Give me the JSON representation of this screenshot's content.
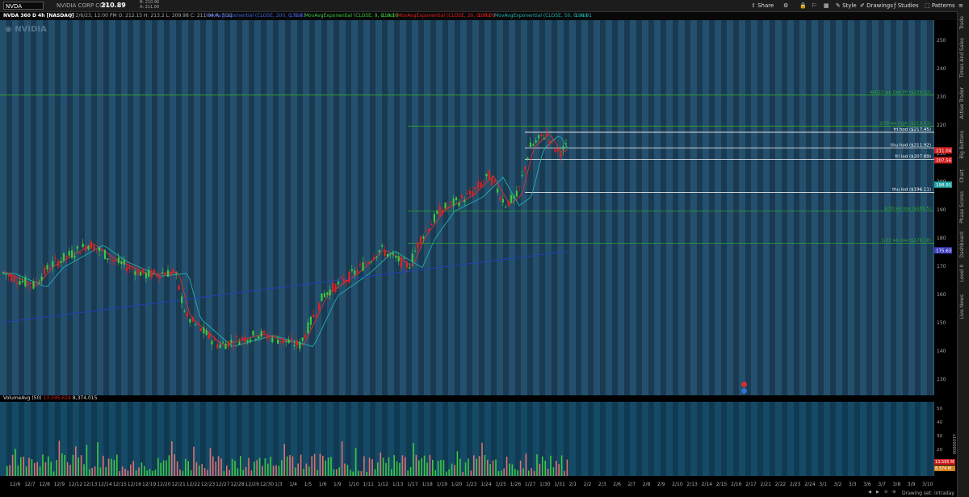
{
  "toolbar": {
    "symbol": "NVDA",
    "company": "NVIDIA CORP COM",
    "price": "210.89",
    "bid_ask_1": "B: 210.96",
    "bid_ask_2": "A: 211.00",
    "buttons": [
      "Share",
      "Style",
      "Drawings",
      "Studies",
      "Patterns"
    ]
  },
  "studies": {
    "title": "NVDA 360 D 4h [NASDAQ]",
    "ohlc": "D: 2/6/23, 12:00 PM   O: 212.15   H: 213.2   L: 209.98   C: 211.04   R: 3.22",
    "ma1": "MovAvgExponential (CLOSE, 200, 0, no)",
    "ma1_val": "175.63",
    "ma2": "MovAvgExponential (CLOSE, 9, 0, no)",
    "ma2_val": "210.16",
    "ma3": "MovAvgExponential (CLOSE, 20, 0, no)",
    "ma3_val": "207.56",
    "ma4": "MovAvgExponential (CLOSE, 50, 0, no)",
    "ma4_val": "198.91"
  },
  "watermark": "NVIDIA",
  "price_axis": [
    "250",
    "240",
    "230",
    "220",
    "210",
    "200",
    "190",
    "180",
    "170",
    "160",
    "150",
    "140",
    "130"
  ],
  "price_badges": [
    {
      "value": "211.04",
      "color": "#d02020"
    },
    {
      "value": "207.56",
      "color": "#d02020"
    },
    {
      "value": "198.91",
      "color": "#20a0a0"
    },
    {
      "value": "175.63",
      "color": "#4040c0"
    }
  ],
  "levels": [
    {
      "label": "4/4/22 wk Dwl PP ($230.62)",
      "price": 230.62,
      "color": "#2ca82c"
    },
    {
      "label": "2/28 wk high ($219.63)",
      "price": 219.63,
      "color": "#2ca82c"
    },
    {
      "label": "fri hod ($217.45)",
      "price": 217.45,
      "color": "#ffffff"
    },
    {
      "label": "thu hod ($211.92)",
      "price": 211.92,
      "color": "#ffffff"
    },
    {
      "label": "fri lod ($207.89)",
      "price": 207.89,
      "color": "#ffffff"
    },
    {
      "label": "thu lod ($196.11)",
      "price": 196.11,
      "color": "#ffffff"
    },
    {
      "label": "1/30 wk low ($189.5)",
      "price": 189.5,
      "color": "#2ca82c"
    },
    {
      "label": "1/23 wk low ($178.18)",
      "price": 178.18,
      "color": "#2ca82c"
    }
  ],
  "volume": {
    "label": "VolumeAvg (50)",
    "v1": "13,595,624",
    "v2": "8,374,015",
    "axis": [
      "50",
      "40",
      "30",
      "20",
      "10"
    ],
    "badge1": "13.595 M",
    "badge2": "8.374 M",
    "side_label": "x1000000"
  },
  "x_dates": [
    "12/6",
    "12/7",
    "12/8",
    "12/9",
    "12/12",
    "12/13",
    "12/14",
    "12/15",
    "12/16",
    "12/19",
    "12/20",
    "12/21",
    "12/22",
    "12/23",
    "12/27",
    "12/28",
    "12/29",
    "12/30",
    "1/3",
    "1/4",
    "1/5",
    "1/6",
    "1/9",
    "1/10",
    "1/11",
    "1/12",
    "1/13",
    "1/17",
    "1/18",
    "1/19",
    "1/20",
    "1/23",
    "1/24",
    "1/25",
    "1/26",
    "1/27",
    "1/30",
    "1/31",
    "2/1",
    "2/2",
    "2/3",
    "2/6",
    "2/7",
    "2/8",
    "2/9",
    "2/10",
    "2/13",
    "2/14",
    "2/15",
    "2/16",
    "2/17",
    "2/21",
    "2/22",
    "2/23",
    "2/24",
    "3/1",
    "3/2",
    "3/3",
    "3/6",
    "3/7",
    "3/8",
    "3/9",
    "3/10"
  ],
  "side_tabs": [
    "Trade",
    "Times And Sales",
    "Active Trader",
    "Big Buttons",
    "Chart",
    "Phase Scores",
    "Dashboard",
    "Level II",
    "Live News"
  ],
  "status": "Drawing set: intraday",
  "colors": {
    "bg": "#1a3a52",
    "up": "#3ec83e",
    "down": "#e02020",
    "ema9": "#e03030",
    "ema20": "#20b0b0",
    "ema50": "#2080c0",
    "ema200": "#2040c0"
  }
}
